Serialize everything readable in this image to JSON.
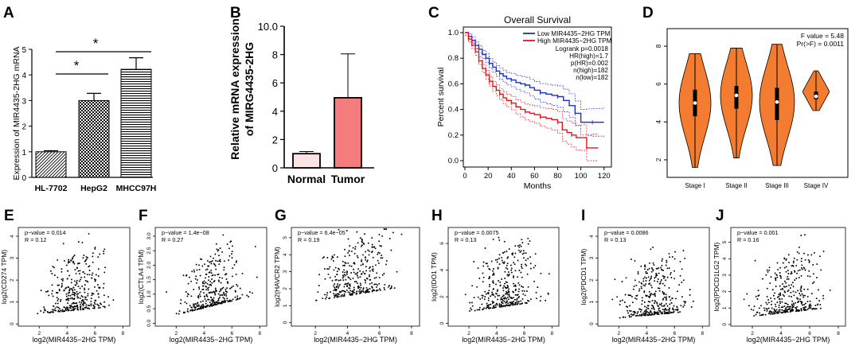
{
  "panels": {
    "A": {
      "letter": "A"
    },
    "B": {
      "letter": "B"
    },
    "C": {
      "letter": "C"
    },
    "D": {
      "letter": "D"
    },
    "E": {
      "letter": "E"
    },
    "F": {
      "letter": "F"
    },
    "G": {
      "letter": "G"
    },
    "H": {
      "letter": "H"
    },
    "I": {
      "letter": "I"
    },
    "J": {
      "letter": "J"
    }
  },
  "colors": {
    "normal_bar": "#fbe3e3",
    "tumor_bar": "#f47c7c",
    "low_km": "#1a2fd0",
    "high_km": "#e0161b",
    "violin": "#f47c30"
  },
  "chart_data": [
    {
      "id": "A",
      "type": "bar",
      "title": "",
      "xlabel": "",
      "ylabel": "Expression of MIR4435-2HG mRNA",
      "categories": [
        "HL-7702",
        "HepG2",
        "MHCC97H"
      ],
      "values": [
        1.0,
        3.0,
        4.22
      ],
      "errors": [
        0.04,
        0.28,
        0.45
      ],
      "patterns": [
        "hatch",
        "checker",
        "hlines"
      ],
      "ylim": [
        0,
        5
      ],
      "yticks": [
        "0",
        "1",
        "2",
        "3",
        "4",
        "5"
      ],
      "significance": [
        "*",
        "*"
      ]
    },
    {
      "id": "B",
      "type": "bar",
      "title": "",
      "xlabel": "",
      "ylabel": "Relative mRNA expression of MIRG4435-2HG",
      "categories": [
        "Normal",
        "Tumor"
      ],
      "values": [
        1.0,
        4.95
      ],
      "errors": [
        0.15,
        3.1
      ],
      "ylim": [
        0,
        10
      ],
      "yticks": [
        "0",
        "2",
        "4",
        "6",
        "8",
        "10.0"
      ]
    },
    {
      "id": "C",
      "type": "line",
      "title": "Overall Survival",
      "xlabel": "Months",
      "ylabel": "Percent survival",
      "xlim": [
        0,
        125
      ],
      "ylim": [
        0,
        1
      ],
      "xticks": [
        "0",
        "20",
        "40",
        "60",
        "80",
        "100",
        "120"
      ],
      "yticks": [
        "0.0",
        "0.2",
        "0.4",
        "0.6",
        "0.8",
        "1.0"
      ],
      "legend": [
        "Low MIR4435−2HG TPM",
        "High MIR4435−2HG TPM"
      ],
      "stats": [
        "Logrank p=0.0018",
        "HR(high)=1.7",
        "p(HR)=0.002",
        "n(high)=182",
        "n(low)=182"
      ],
      "series": [
        {
          "name": "Low MIR4435−2HG TPM",
          "x": [
            0,
            3,
            6,
            9,
            12,
            15,
            18,
            21,
            24,
            27,
            30,
            33,
            36,
            40,
            44,
            48,
            52,
            56,
            60,
            65,
            70,
            75,
            80,
            85,
            90,
            95,
            100,
            105,
            110,
            120
          ],
          "y": [
            1.0,
            0.97,
            0.94,
            0.9,
            0.87,
            0.83,
            0.8,
            0.76,
            0.73,
            0.7,
            0.68,
            0.66,
            0.64,
            0.63,
            0.61,
            0.6,
            0.59,
            0.57,
            0.55,
            0.53,
            0.52,
            0.51,
            0.5,
            0.47,
            0.43,
            0.37,
            0.3,
            0.3,
            0.3,
            0.3
          ]
        },
        {
          "name": "High MIR4435−2HG TPM",
          "x": [
            0,
            3,
            6,
            9,
            12,
            15,
            18,
            21,
            24,
            27,
            30,
            33,
            36,
            40,
            44,
            48,
            52,
            56,
            60,
            65,
            70,
            75,
            80,
            84,
            88,
            92,
            96,
            100,
            105,
            110,
            115
          ],
          "y": [
            1.0,
            0.95,
            0.9,
            0.85,
            0.78,
            0.72,
            0.67,
            0.62,
            0.58,
            0.55,
            0.52,
            0.49,
            0.47,
            0.45,
            0.42,
            0.4,
            0.38,
            0.37,
            0.36,
            0.34,
            0.33,
            0.32,
            0.3,
            0.24,
            0.22,
            0.2,
            0.18,
            0.18,
            0.1,
            0.1,
            0.1
          ]
        }
      ]
    },
    {
      "id": "D",
      "type": "violin",
      "title": "",
      "xlabel": "",
      "ylabel": "",
      "categories": [
        "Stage I",
        "Stage II",
        "Stage III",
        "Stage IV"
      ],
      "medians": [
        5.0,
        5.4,
        5.05,
        5.35
      ],
      "q1": [
        4.3,
        4.7,
        4.1,
        5.2
      ],
      "q3": [
        5.7,
        5.9,
        5.8,
        5.6
      ],
      "min": [
        1.6,
        2.1,
        1.7,
        4.6
      ],
      "max": [
        7.6,
        7.9,
        8.1,
        6.7
      ],
      "ylim": [
        1.2,
        8.8
      ],
      "yticks": [
        "2",
        "4",
        "6",
        "8"
      ],
      "annotation": [
        "F value = 5.48",
        "Pr(>F) = 0.0011"
      ]
    },
    {
      "id": "E",
      "type": "scatter",
      "xlabel": "log2(MIR4435−2HG TPM)",
      "ylabel": "log2(CD274 TPM)",
      "annotation": [
        "p−value = 0.014",
        "R = 0.12"
      ],
      "xlim": [
        0.5,
        8.5
      ],
      "ylim": [
        -0.1,
        4.4
      ],
      "xticks": [
        "2",
        "4",
        "6",
        "8"
      ],
      "yticks": [
        "0",
        "1",
        "2",
        "3",
        "4"
      ],
      "n_points": 350,
      "slope": 0.06,
      "intercept": 0.35
    },
    {
      "id": "F",
      "type": "scatter",
      "xlabel": "log2(MIR4435−2HG TPM)",
      "ylabel": "log2(CTLA4 TPM)",
      "annotation": [
        "p−value = 1.4e−08",
        "R = 0.27"
      ],
      "xlim": [
        0.5,
        8.5
      ],
      "ylim": [
        -0.1,
        3.3
      ],
      "xticks": [
        "2",
        "4",
        "6",
        "8"
      ],
      "yticks": [
        "0.0",
        "0.5",
        "1.0",
        "1.5",
        "2.0",
        "2.5",
        "3.0"
      ],
      "n_points": 350,
      "slope": 0.12,
      "intercept": 0.05
    },
    {
      "id": "G",
      "type": "scatter",
      "xlabel": "log2(MIR4435−2HG TPM)",
      "ylabel": "log2(HAVCR2 TPM)",
      "annotation": [
        "p−value = 6.4e−05",
        "R = 0.19"
      ],
      "xlim": [
        0.5,
        8.5
      ],
      "ylim": [
        -0.2,
        5.6
      ],
      "xticks": [
        "2",
        "4",
        "6",
        "8"
      ],
      "yticks": [
        "0",
        "1",
        "2",
        "3",
        "4",
        "5"
      ],
      "n_points": 350,
      "slope": 0.15,
      "intercept": 1.0
    },
    {
      "id": "H",
      "type": "scatter",
      "xlabel": "log2(MIR4435−2HG TPM)",
      "ylabel": "log2(IDO1 TPM)",
      "annotation": [
        "p−value = 0.0075",
        "R = 0.13"
      ],
      "xlim": [
        0.5,
        8.5
      ],
      "ylim": [
        -0.2,
        7.2
      ],
      "xticks": [
        "2",
        "4",
        "6",
        "8"
      ],
      "yticks": [
        "0",
        "2",
        "4",
        "6"
      ],
      "n_points": 350,
      "slope": 0.15,
      "intercept": 0.6
    },
    {
      "id": "I",
      "type": "scatter",
      "xlabel": "log2(MIR4435−2HG TPM)",
      "ylabel": "log2(PDCD1 TPM)",
      "annotation": [
        "p−value = 0.0086",
        "R = 0.13"
      ],
      "xlim": [
        0.5,
        8.5
      ],
      "ylim": [
        -0.1,
        4.4
      ],
      "xticks": [
        "2",
        "4",
        "6",
        "8"
      ],
      "yticks": [
        "0",
        "1",
        "2",
        "3",
        "4"
      ],
      "n_points": 350,
      "slope": 0.06,
      "intercept": 0.15
    },
    {
      "id": "J",
      "type": "scatter",
      "xlabel": "log2(MIR4435−2HG TPM)",
      "ylabel": "log2(PDCD1LG2 TPM)",
      "annotation": [
        "p−value = 0.001",
        "R = 0.16"
      ],
      "xlim": [
        0.5,
        8.5
      ],
      "ylim": [
        -0.1,
        5.9
      ],
      "xticks": [
        "2",
        "4",
        "6",
        "8"
      ],
      "yticks": [
        "0",
        "1",
        "2",
        "3",
        "4",
        "5"
      ],
      "n_points": 350,
      "slope": 0.1,
      "intercept": 0.3
    }
  ]
}
